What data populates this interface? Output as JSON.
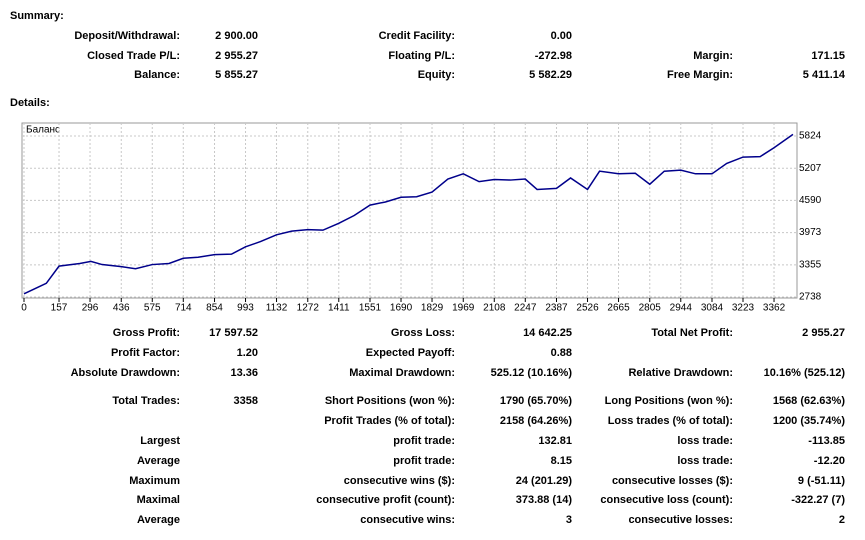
{
  "summary": {
    "title": "Summary:",
    "rows": [
      {
        "left": {
          "label": "Deposit/Withdrawal:",
          "value": "2 900.00"
        },
        "middle": {
          "label": "Credit Facility:",
          "value": "0.00"
        }
      },
      {
        "left": {
          "label": "Closed Trade P/L:",
          "value": "2 955.27"
        },
        "middle": {
          "label": "Floating P/L:",
          "value": "-272.98"
        },
        "right": {
          "label": "Margin:",
          "value": "171.15"
        }
      },
      {
        "left": {
          "label": "Balance:",
          "value": "5 855.27"
        },
        "middle": {
          "label": "Equity:",
          "value": "5 582.29"
        },
        "right": {
          "label": "Free Margin:",
          "value": "5 411.14"
        }
      }
    ]
  },
  "details": {
    "title": "Details:",
    "rows": [
      {
        "left": {
          "label": "Gross Profit:",
          "value": "17 597.52"
        },
        "middle": {
          "label": "Gross Loss:",
          "value": "14 642.25"
        },
        "right": {
          "label": "Total Net Profit:",
          "value": "2 955.27"
        }
      },
      {
        "left": {
          "label": "Profit Factor:",
          "value": "1.20"
        },
        "middle": {
          "label": "Expected Payoff:",
          "value": "0.88"
        }
      },
      {
        "left": {
          "label": "Absolute Drawdown:",
          "value": "13.36"
        },
        "middle": {
          "label": "Maximal Drawdown:",
          "value": "525.12 (10.16%)"
        },
        "right": {
          "label": "Relative Drawdown:",
          "value": "10.16% (525.12)"
        }
      },
      {
        "left": {
          "label": "Total Trades:",
          "value": "3358"
        },
        "middle": {
          "label": "Short Positions (won %):",
          "value": "1790 (65.70%)"
        },
        "right": {
          "label": "Long Positions (won %):",
          "value": "1568 (62.63%)"
        }
      },
      {
        "middle": {
          "label": "Profit Trades (% of total):",
          "value": "2158 (64.26%)"
        },
        "right": {
          "label": "Loss trades (% of total):",
          "value": "1200 (35.74%)"
        }
      },
      {
        "left": {
          "label": "Largest"
        },
        "middle": {
          "label": "profit trade:",
          "value": "132.81"
        },
        "right": {
          "label": "loss trade:",
          "value": "-113.85"
        }
      },
      {
        "left": {
          "label": "Average"
        },
        "middle": {
          "label": "profit trade:",
          "value": "8.15"
        },
        "right": {
          "label": "loss trade:",
          "value": "-12.20"
        }
      },
      {
        "left": {
          "label": "Maximum"
        },
        "middle": {
          "label": "consecutive wins ($):",
          "value": "24 (201.29)"
        },
        "right": {
          "label": "consecutive losses ($):",
          "value": "9 (-51.11)"
        }
      },
      {
        "left": {
          "label": "Maximal"
        },
        "middle": {
          "label": "consecutive profit (count):",
          "value": "373.88 (14)"
        },
        "right": {
          "label": "consecutive loss (count):",
          "value": "-322.27 (7)"
        }
      },
      {
        "left": {
          "label": "Average"
        },
        "middle": {
          "label": "consecutive wins:",
          "value": "3"
        },
        "right": {
          "label": "consecutive losses:",
          "value": "2"
        }
      }
    ]
  },
  "chart_data": {
    "type": "line",
    "title": "Баланс",
    "color": "#00008b",
    "grid": true,
    "x": [
      0,
      50,
      100,
      157,
      250,
      300,
      350,
      436,
      500,
      575,
      650,
      714,
      780,
      854,
      930,
      993,
      1060,
      1132,
      1200,
      1272,
      1340,
      1411,
      1480,
      1551,
      1620,
      1690,
      1760,
      1829,
      1900,
      1969,
      2040,
      2108,
      2180,
      2247,
      2300,
      2387,
      2450,
      2526,
      2580,
      2665,
      2740,
      2805,
      2870,
      2944,
      3010,
      3084,
      3150,
      3223,
      3300,
      3362,
      3447
    ],
    "values": [
      2800,
      2900,
      3000,
      3330,
      3380,
      3420,
      3360,
      3320,
      3280,
      3360,
      3380,
      3480,
      3500,
      3550,
      3560,
      3700,
      3800,
      3930,
      4000,
      4030,
      4020,
      4150,
      4300,
      4500,
      4560,
      4650,
      4660,
      4750,
      5000,
      5100,
      4950,
      4990,
      4980,
      5000,
      4800,
      4820,
      5020,
      4800,
      5150,
      5100,
      5110,
      4900,
      5150,
      5170,
      5100,
      5100,
      5300,
      5420,
      5430,
      5600,
      5855
    ],
    "xlim": [
      0,
      3465
    ],
    "ylim": [
      2738,
      6074
    ],
    "xticks": [
      0,
      157,
      296,
      436,
      575,
      714,
      854,
      993,
      1132,
      1272,
      1411,
      1551,
      1690,
      1829,
      1969,
      2108,
      2247,
      2387,
      2526,
      2665,
      2805,
      2944,
      3084,
      3223,
      3362
    ],
    "yticks": [
      2738,
      3355,
      3973,
      4590,
      5207,
      5824
    ]
  }
}
